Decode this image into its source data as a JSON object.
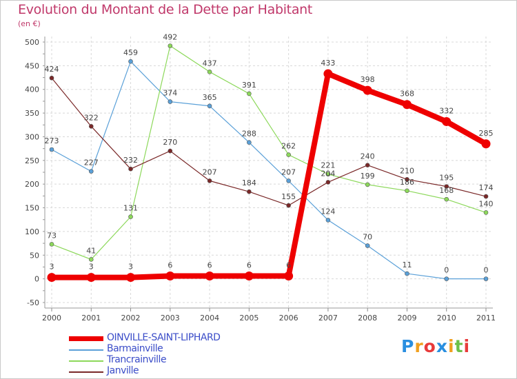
{
  "title": "Evolution du Montant de la Dette par Habitant",
  "subtitle": "(en €)",
  "logo": {
    "text": "Proxiti",
    "colors": [
      "#2a8fe0",
      "#f0a020",
      "#e83a3a",
      "#2a8fe0",
      "#f0a020",
      "#6cc04a",
      "#e83a3a"
    ]
  },
  "chart_data": {
    "type": "line",
    "title": "Evolution du Montant de la Dette par Habitant",
    "subtitle": "(en €)",
    "x": [
      "2000",
      "2001",
      "2002",
      "2003",
      "2004",
      "2005",
      "2006",
      "2007",
      "2008",
      "2009",
      "2010",
      "2011"
    ],
    "ylim": [
      -50,
      500
    ],
    "yticks": [
      "-50",
      "0",
      "50",
      "100",
      "150",
      "200",
      "250",
      "300",
      "350",
      "400",
      "450",
      "500"
    ],
    "grid": true,
    "legend": "bottom-left",
    "series": [
      {
        "name": "Barmainville",
        "color": "#5aa0d8",
        "values": [
          273,
          227,
          459,
          374,
          365,
          288,
          207,
          124,
          70,
          11,
          0,
          0
        ],
        "labels": [
          "273",
          "227",
          "459",
          "374",
          "365",
          "288",
          "207",
          "124",
          "70",
          "11",
          "0",
          "0"
        ]
      },
      {
        "name": "Trancrainville",
        "color": "#8cd85a",
        "values": [
          73,
          41,
          131,
          492,
          437,
          391,
          262,
          221,
          199,
          186,
          168,
          140
        ],
        "labels": [
          "73",
          "41",
          "131",
          "492",
          "437",
          "391",
          "262",
          "221",
          "199",
          "186",
          "168",
          "140"
        ]
      },
      {
        "name": "Janville",
        "color": "#7a2828",
        "values": [
          424,
          322,
          232,
          270,
          207,
          184,
          155,
          204,
          240,
          210,
          195,
          174
        ],
        "labels": [
          "424",
          "322",
          "232",
          "270",
          "207",
          "184",
          "155",
          "204",
          "240",
          "210",
          "195",
          "174"
        ]
      },
      {
        "name": "OINVILLE-SAINT-LIPHARD",
        "color": "#ee0000",
        "values": [
          3,
          3,
          3,
          6,
          6,
          6,
          6,
          433,
          398,
          368,
          332,
          285
        ],
        "labels": [
          "3",
          "3",
          "3",
          "6",
          "6",
          "6",
          "6",
          "433",
          "398",
          "368",
          "332",
          "285"
        ]
      }
    ]
  }
}
